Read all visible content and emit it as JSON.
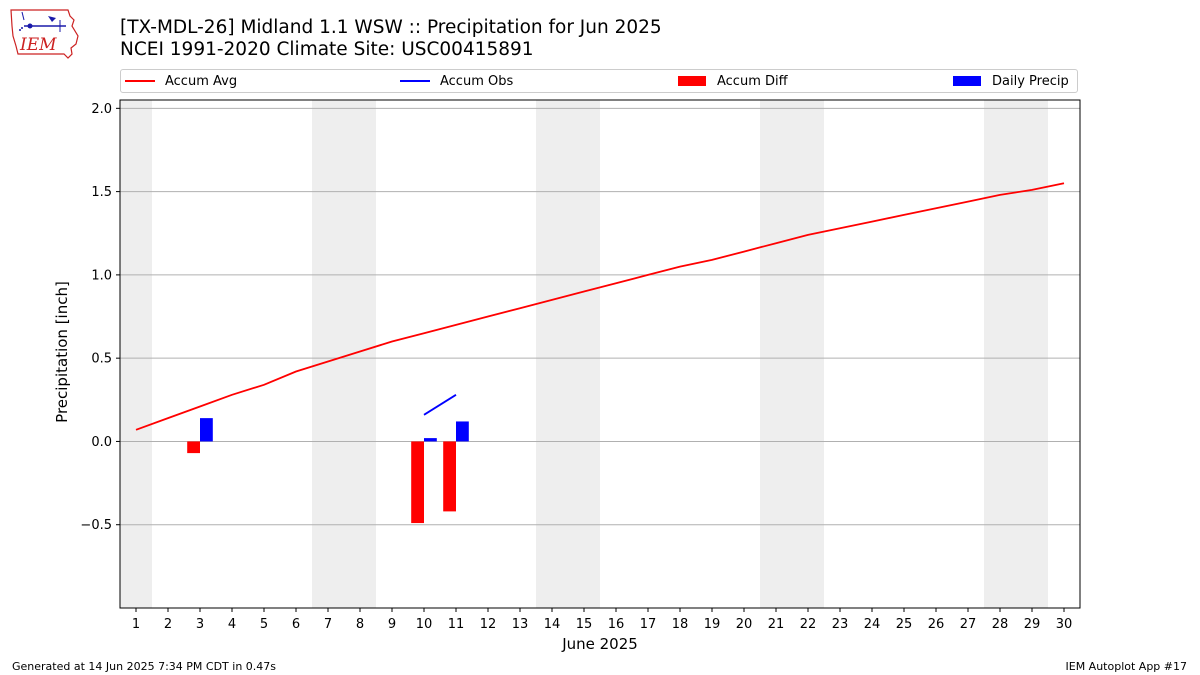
{
  "header": {
    "title_line1": "[TX-MDL-26] Midland 1.1 WSW :: Precipitation for Jun 2025",
    "title_line2": "NCEI 1991-2020 Climate Site: USC00415891"
  },
  "logo": {
    "text": "IEM",
    "color": "#cc2222",
    "accent": "#1a1aaa"
  },
  "legend": {
    "items": [
      {
        "label": "Accum Avg",
        "kind": "line",
        "color": "#ff0000"
      },
      {
        "label": "Accum Obs",
        "kind": "line",
        "color": "#0000ff"
      },
      {
        "label": "Accum Diff",
        "kind": "box",
        "color": "#ff0000"
      },
      {
        "label": "Daily Precip",
        "kind": "box",
        "color": "#0000ff"
      }
    ]
  },
  "footer": {
    "left": "Generated at 14 Jun 2025 7:34 PM CDT in 0.47s",
    "right": "IEM Autoplot App #17"
  },
  "chart_data": {
    "type": "bar",
    "xlabel": "June 2025",
    "ylabel": "Precipitation [inch]",
    "xlim": [
      0.5,
      30.5
    ],
    "ylim": [
      -1.0,
      2.05
    ],
    "x_ticks": [
      1,
      2,
      3,
      4,
      5,
      6,
      7,
      8,
      9,
      10,
      11,
      12,
      13,
      14,
      15,
      16,
      17,
      18,
      19,
      20,
      21,
      22,
      23,
      24,
      25,
      26,
      27,
      28,
      29,
      30
    ],
    "y_ticks": [
      -0.5,
      0.0,
      0.5,
      1.0,
      1.5,
      2.0
    ],
    "y_tick_labels": [
      "−0.5",
      "0.0",
      "0.5",
      "1.0",
      "1.5",
      "2.0"
    ],
    "grid": "horizontal",
    "weekend_shading": [
      [
        0.5,
        1.5
      ],
      [
        6.5,
        8.5
      ],
      [
        13.5,
        15.5
      ],
      [
        20.5,
        22.5
      ],
      [
        27.5,
        29.5
      ]
    ],
    "shade_color": "#eeeeee",
    "series": [
      {
        "name": "Accum Avg",
        "type": "line",
        "color": "#ff0000",
        "x": [
          1,
          2,
          3,
          4,
          5,
          6,
          7,
          8,
          9,
          10,
          11,
          12,
          13,
          14,
          15,
          16,
          17,
          18,
          19,
          20,
          21,
          22,
          23,
          24,
          25,
          26,
          27,
          28,
          29,
          30
        ],
        "values": [
          0.07,
          0.14,
          0.21,
          0.28,
          0.34,
          0.42,
          0.48,
          0.54,
          0.6,
          0.65,
          0.7,
          0.75,
          0.8,
          0.85,
          0.9,
          0.95,
          1.0,
          1.05,
          1.09,
          1.14,
          1.19,
          1.24,
          1.28,
          1.32,
          1.36,
          1.4,
          1.44,
          1.48,
          1.51,
          1.55
        ]
      },
      {
        "name": "Accum Obs",
        "type": "line",
        "color": "#0000ff",
        "x": [
          10,
          11
        ],
        "values": [
          0.16,
          0.28
        ]
      },
      {
        "name": "Accum Diff",
        "type": "bar",
        "color": "#ff0000",
        "x": [
          3,
          10,
          11
        ],
        "values": [
          -0.07,
          -0.49,
          -0.42
        ]
      },
      {
        "name": "Daily Precip",
        "type": "bar",
        "color": "#0000ff",
        "x": [
          3,
          10,
          11
        ],
        "values": [
          0.14,
          0.02,
          0.12
        ]
      }
    ]
  }
}
